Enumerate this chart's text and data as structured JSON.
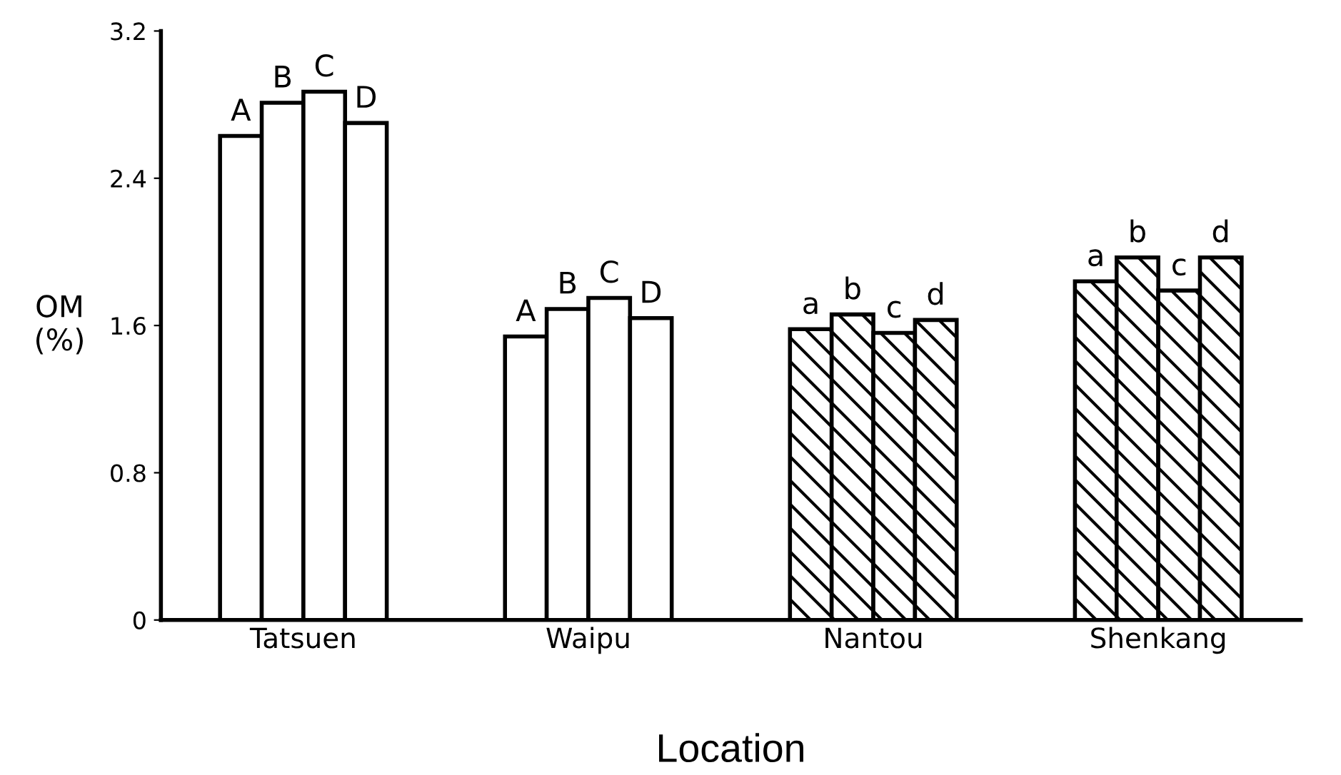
{
  "chart_data": {
    "type": "bar",
    "xlabel": "Location",
    "ylabel": "OM\n(%)",
    "categories": [
      "Tatsuen",
      "Waipu",
      "Nantou",
      "Shenkang"
    ],
    "series": [
      {
        "colors": [
          "#ffffff",
          "#ffffff",
          "#000000",
          "#000000"
        ],
        "values": [
          2.63,
          1.54,
          1.58,
          1.84
        ],
        "value_labels": [
          "A",
          "A",
          "a",
          "a"
        ]
      },
      {
        "colors": [
          "#ffffff",
          "#ffffff",
          "#000000",
          "#000000"
        ],
        "values": [
          2.81,
          1.69,
          1.66,
          1.97
        ],
        "value_labels": [
          "B",
          "B",
          "b",
          "b"
        ]
      },
      {
        "colors": [
          "#ffffff",
          "#ffffff",
          "#000000",
          "#000000"
        ],
        "values": [
          2.87,
          1.75,
          1.56,
          1.79
        ],
        "value_labels": [
          "C",
          "C",
          "c",
          "c"
        ]
      },
      {
        "colors": [
          "#ffffff",
          "#ffffff",
          "#000000",
          "#000000"
        ],
        "values": [
          2.7,
          1.64,
          1.63,
          1.97
        ],
        "value_labels": [
          "D",
          "D",
          "d",
          "d"
        ]
      }
    ],
    "ylim": [
      0,
      3.2
    ],
    "yticks": [
      0,
      0.8,
      1.6,
      2.4,
      3.2
    ],
    "grid": false,
    "legend": false
  }
}
